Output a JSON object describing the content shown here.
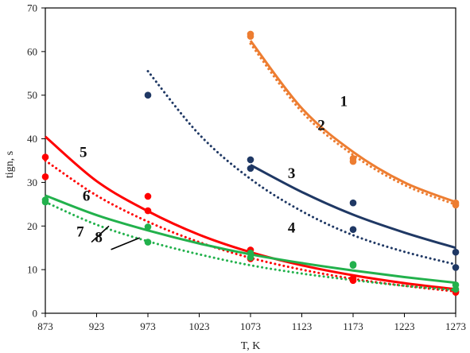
{
  "chart_data": {
    "type": "scatter",
    "xlabel": "T, K",
    "ylabel": "tign, s",
    "xlim": [
      873,
      1273
    ],
    "ylim": [
      0,
      70
    ],
    "xticks": [
      873,
      923,
      973,
      1023,
      1073,
      1123,
      1173,
      1223,
      1273
    ],
    "yticks": [
      0,
      10,
      20,
      30,
      40,
      50,
      60,
      70
    ],
    "grid": false,
    "legend": "none",
    "series": [
      {
        "name": "1",
        "color": "#ed7d31",
        "style": "solid",
        "points": [
          [
            1073,
            64.0
          ],
          [
            1173,
            35.5
          ],
          [
            1273,
            25.3
          ]
        ],
        "fit": [
          [
            1073,
            62.5
          ],
          [
            1123,
            47.0
          ],
          [
            1173,
            37.0
          ],
          [
            1223,
            30.0
          ],
          [
            1273,
            25.5
          ]
        ]
      },
      {
        "name": "2",
        "color": "#ed7d31",
        "style": "dotted",
        "points": [
          [
            1073,
            63.5
          ],
          [
            1173,
            34.8
          ],
          [
            1273,
            24.8
          ]
        ],
        "fit": [
          [
            1073,
            61.8
          ],
          [
            1123,
            46.2
          ],
          [
            1173,
            36.3
          ],
          [
            1223,
            29.4
          ],
          [
            1273,
            24.9
          ]
        ]
      },
      {
        "name": "3",
        "color": "#1f3864",
        "style": "solid",
        "points": [
          [
            1073,
            35.2
          ],
          [
            1173,
            25.3
          ],
          [
            1273,
            14.0
          ]
        ],
        "fit": [
          [
            1073,
            34.0
          ],
          [
            1123,
            27.8
          ],
          [
            1173,
            22.6
          ],
          [
            1223,
            18.5
          ],
          [
            1273,
            15.0
          ]
        ]
      },
      {
        "name": "4",
        "color": "#1f3864",
        "style": "dotted",
        "points": [
          [
            973,
            50.0
          ],
          [
            1073,
            33.2
          ],
          [
            1173,
            19.2
          ],
          [
            1273,
            10.5
          ]
        ],
        "fit": [
          [
            973,
            55.5
          ],
          [
            1023,
            41.0
          ],
          [
            1073,
            30.8
          ],
          [
            1123,
            23.4
          ],
          [
            1173,
            17.9
          ],
          [
            1223,
            14.1
          ],
          [
            1273,
            11.2
          ]
        ]
      },
      {
        "name": "5",
        "color": "#ff0000",
        "style": "solid",
        "points": [
          [
            873,
            35.8
          ],
          [
            973,
            26.8
          ],
          [
            1073,
            14.5
          ],
          [
            1173,
            8.0
          ],
          [
            1273,
            5.0
          ]
        ],
        "fit": [
          [
            873,
            40.5
          ],
          [
            923,
            30.3
          ],
          [
            973,
            23.4
          ],
          [
            1023,
            18.0
          ],
          [
            1073,
            14.0
          ],
          [
            1123,
            11.0
          ],
          [
            1173,
            8.7
          ],
          [
            1223,
            6.9
          ],
          [
            1273,
            5.5
          ]
        ]
      },
      {
        "name": "6",
        "color": "#ff0000",
        "style": "dotted",
        "points": [
          [
            873,
            31.3
          ],
          [
            973,
            23.5
          ],
          [
            1073,
            12.5
          ],
          [
            1173,
            7.5
          ],
          [
            1273,
            4.8
          ]
        ],
        "fit": [
          [
            873,
            35.0
          ],
          [
            923,
            27.0
          ],
          [
            973,
            21.0
          ],
          [
            1023,
            16.3
          ],
          [
            1073,
            12.7
          ],
          [
            1123,
            10.0
          ],
          [
            1173,
            7.9
          ],
          [
            1223,
            6.3
          ],
          [
            1273,
            5.0
          ]
        ]
      },
      {
        "name": "7",
        "color": "#22b14c",
        "style": "solid",
        "points": [
          [
            873,
            26.0
          ],
          [
            973,
            19.8
          ],
          [
            1073,
            13.8
          ],
          [
            1173,
            11.0
          ],
          [
            1273,
            6.5
          ]
        ],
        "fit": [
          [
            873,
            27.0
          ],
          [
            923,
            22.5
          ],
          [
            973,
            19.0
          ],
          [
            1023,
            16.0
          ],
          [
            1073,
            13.5
          ],
          [
            1123,
            11.5
          ],
          [
            1173,
            9.8
          ],
          [
            1223,
            8.3
          ],
          [
            1273,
            7.0
          ]
        ]
      },
      {
        "name": "8",
        "color": "#22b14c",
        "style": "dotted",
        "points": [
          [
            873,
            25.5
          ],
          [
            973,
            16.3
          ],
          [
            1073,
            12.8
          ],
          [
            1173,
            11.2
          ],
          [
            1273,
            5.5
          ]
        ],
        "fit": [
          [
            873,
            25.5
          ],
          [
            923,
            20.3
          ],
          [
            973,
            16.5
          ],
          [
            1023,
            13.5
          ],
          [
            1073,
            11.0
          ],
          [
            1123,
            9.1
          ],
          [
            1173,
            7.6
          ],
          [
            1223,
            6.3
          ],
          [
            1273,
            5.3
          ]
        ]
      }
    ],
    "annotations": [
      {
        "text": "1",
        "x": 1164,
        "y": 47.5
      },
      {
        "text": "2",
        "x": 1142,
        "y": 42.0
      },
      {
        "text": "3",
        "x": 1113,
        "y": 31.0
      },
      {
        "text": "4",
        "x": 1113,
        "y": 18.5
      },
      {
        "text": "5",
        "x": 910,
        "y": 35.8
      },
      {
        "text": "6",
        "x": 913,
        "y": 25.8
      },
      {
        "text": "7",
        "x": 907,
        "y": 17.6
      },
      {
        "text": "8",
        "x": 925,
        "y": 16.3
      }
    ],
    "pointer_lines": [
      {
        "from": [
          918,
          16.3
        ],
        "to": [
          935,
          20.0
        ]
      },
      {
        "from": [
          937,
          14.6
        ],
        "to": [
          965,
          17.3
        ]
      }
    ]
  }
}
